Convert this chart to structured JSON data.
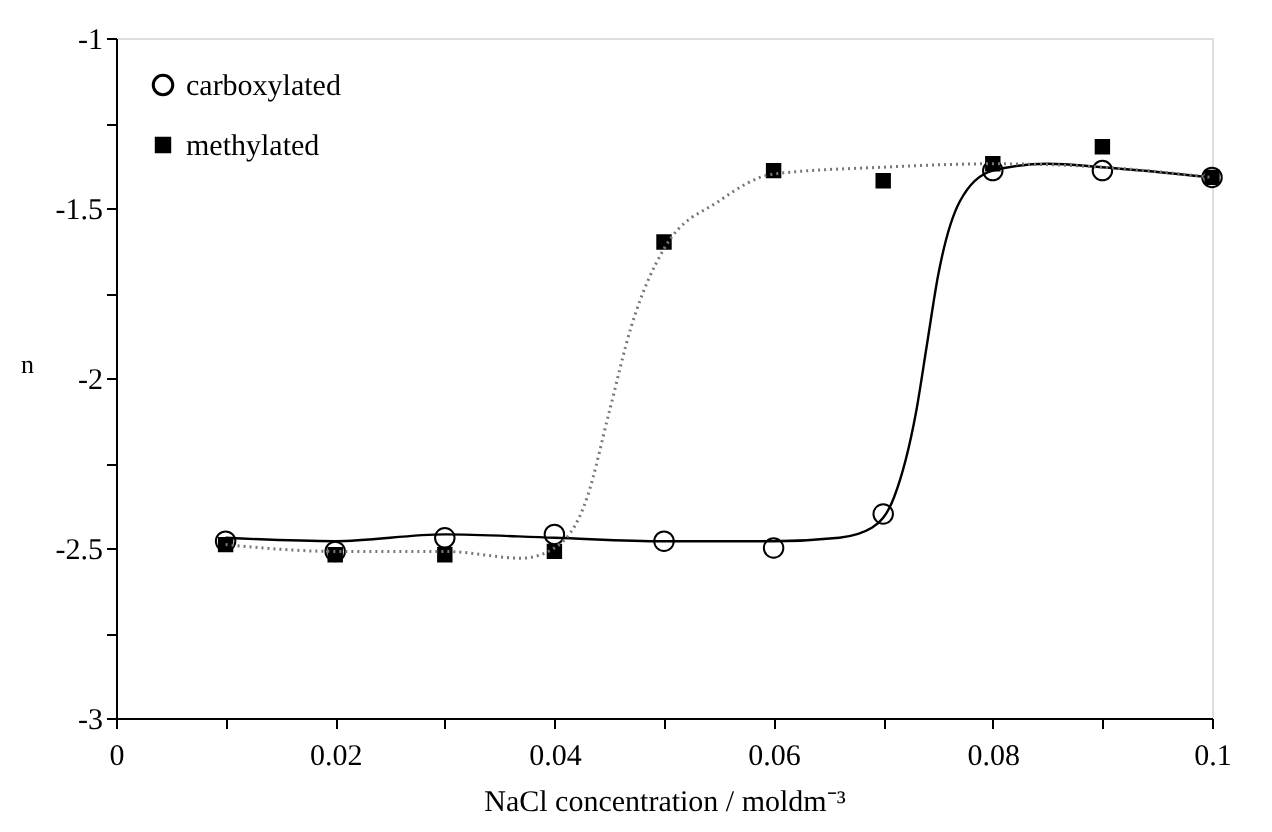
{
  "chart_data": {
    "type": "scatter",
    "xlabel": "NaCl concentration / moldm⁻³",
    "ylabel": "n",
    "xlim": [
      0,
      0.1
    ],
    "ylim": [
      -3,
      -1
    ],
    "xticks": [
      0,
      {
        "value": 0.01,
        "label": null
      },
      0.02,
      {
        "value": 0.03,
        "label": null
      },
      0.04,
      {
        "value": 0.05,
        "label": null
      },
      0.06,
      {
        "value": 0.07,
        "label": null
      },
      0.08,
      {
        "value": 0.09,
        "label": null
      },
      0.1
    ],
    "yticks": [
      -3,
      {
        "value": -2.75,
        "label": null
      },
      -2.5,
      {
        "value": -2.25,
        "label": null
      },
      -2,
      {
        "value": -1.75,
        "label": null
      },
      -1.5,
      {
        "value": -1.25,
        "label": null
      },
      -1
    ],
    "grid": false,
    "legend": "top left",
    "series": [
      {
        "name": "carboxylated",
        "marker": "circle",
        "color": "#000000",
        "x": [
          0.01,
          0.02,
          0.03,
          0.04,
          0.05,
          0.06,
          0.07,
          0.08,
          0.09,
          0.1
        ],
        "values": [
          -2.48,
          -2.51,
          -2.47,
          -2.46,
          -2.48,
          -2.5,
          -2.4,
          -1.39,
          -1.39,
          -1.41
        ]
      },
      {
        "name": "methylated",
        "marker": "square",
        "color": "#000000",
        "x": [
          0.01,
          0.02,
          0.03,
          0.04,
          0.05,
          0.06,
          0.07,
          0.08,
          0.09,
          0.1
        ],
        "values": [
          -2.49,
          -2.52,
          -2.52,
          -2.51,
          -1.6,
          -1.39,
          -1.42,
          -1.37,
          -1.32,
          -1.41
        ]
      },
      {
        "type": "line",
        "line_style": "solid",
        "marker": "none",
        "color": "#000000",
        "x": [
          0.01,
          0.02,
          0.03,
          0.04,
          0.05,
          0.06,
          0.066,
          0.069,
          0.071,
          0.073,
          0.074,
          0.075,
          0.077,
          0.08,
          0.085,
          0.09,
          0.1
        ],
        "values": [
          -2.47,
          -2.48,
          -2.46,
          -2.47,
          -2.48,
          -2.48,
          -2.47,
          -2.44,
          -2.35,
          -2.1,
          -1.9,
          -1.7,
          -1.48,
          -1.39,
          -1.37,
          -1.38,
          -1.41
        ]
      },
      {
        "type": "line",
        "line_style": "dotted",
        "marker": "none",
        "color": "#777777",
        "x": [
          0.01,
          0.02,
          0.03,
          0.037,
          0.04,
          0.043,
          0.045,
          0.047,
          0.05,
          0.055,
          0.06,
          0.07,
          0.08,
          0.09,
          0.1
        ],
        "values": [
          -2.49,
          -2.51,
          -2.51,
          -2.53,
          -2.5,
          -2.35,
          -2.1,
          -1.85,
          -1.62,
          -1.48,
          -1.4,
          -1.38,
          -1.37,
          -1.38,
          -1.41
        ]
      }
    ]
  }
}
